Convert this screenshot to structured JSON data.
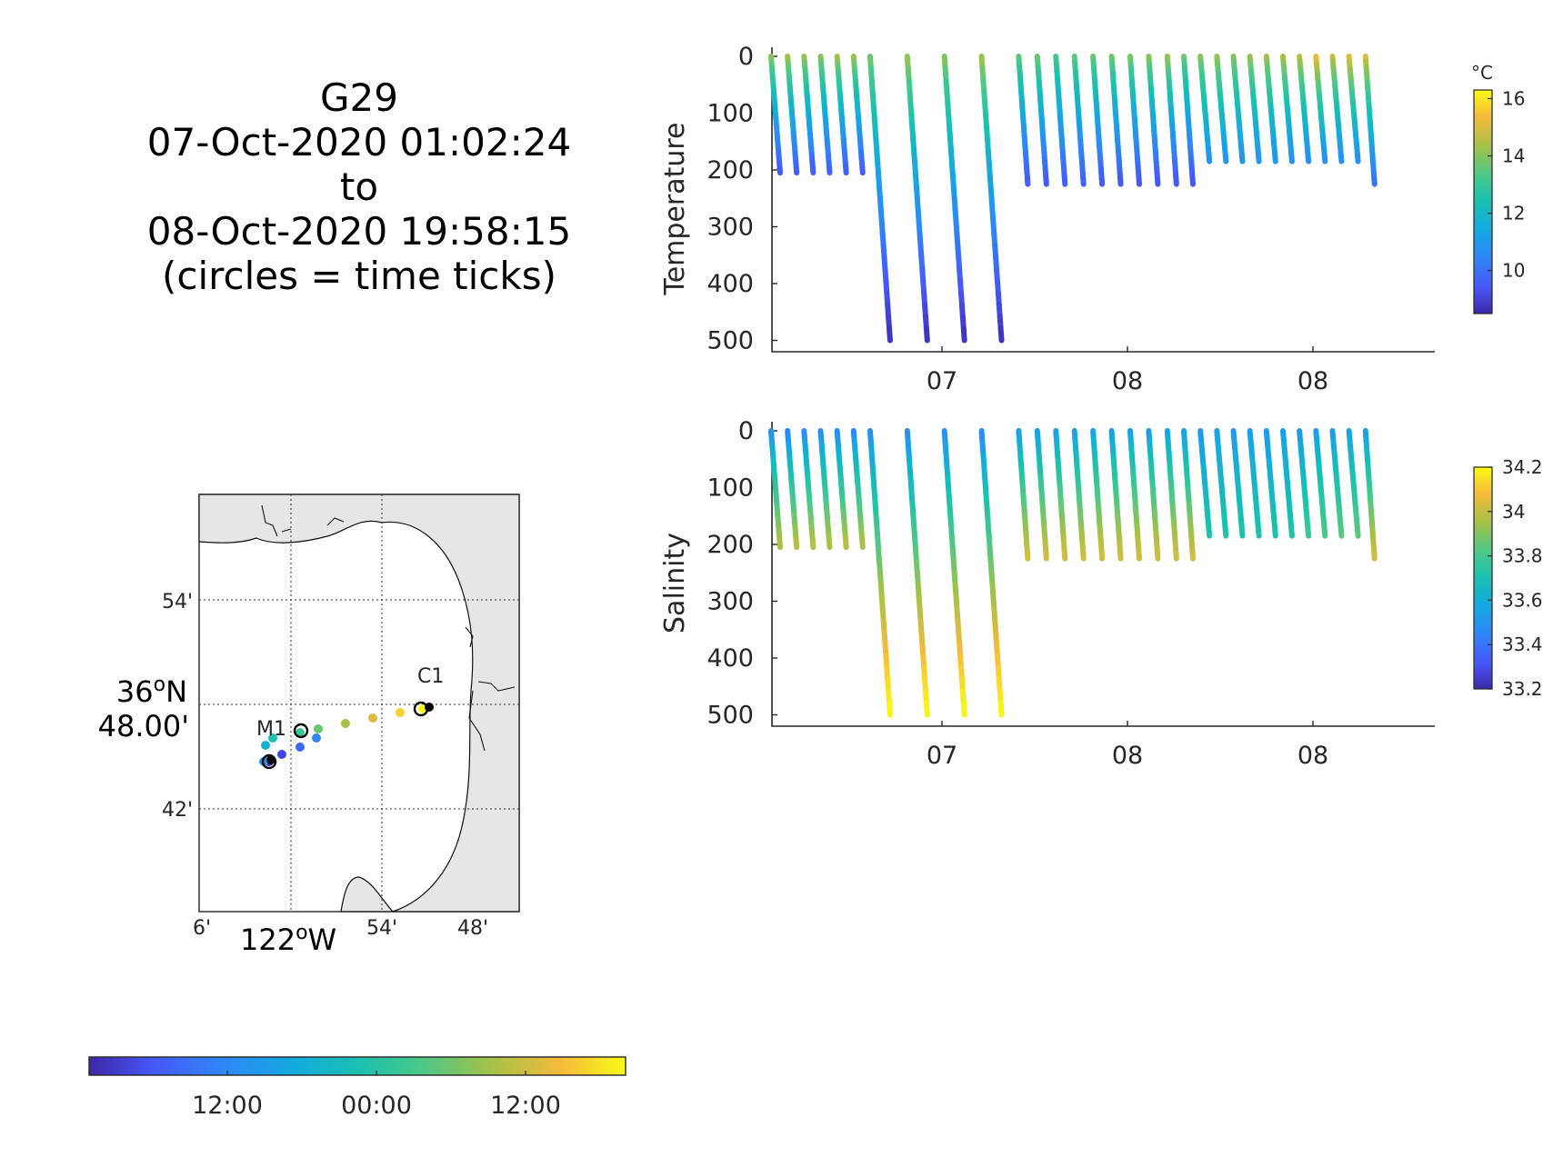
{
  "title": {
    "lines": [
      "G29",
      "07-Oct-2020 01:02:24",
      "to",
      "08-Oct-2020 19:58:15",
      "(circles = time ticks)"
    ]
  },
  "map": {
    "lat_labels": [
      "54'",
      "48.00'",
      "42'"
    ],
    "lat_deg_label": "36",
    "lat_deg_suffix": "N",
    "lon_labels": [
      "6'",
      "54'",
      "48'"
    ],
    "lon_deg_label": "122",
    "lon_deg_suffix": "W",
    "degree_symbol": "o",
    "stations": [
      {
        "name": "M1"
      },
      {
        "name": "C1"
      }
    ],
    "land_color": "#e6e6e6",
    "track_time_fraction": [
      0.0,
      0.33,
      0.66,
      1.0
    ]
  },
  "time_colorbar": {
    "tick_labels": [
      "12:00",
      "00:00",
      "12:00"
    ]
  },
  "chart_data": [
    {
      "type": "scatter",
      "ylabel": "Temperature",
      "yticks": [
        0,
        100,
        200,
        300,
        400,
        500
      ],
      "ylim": [
        0,
        520
      ],
      "xtick_labels": [
        "07",
        "08",
        "08"
      ],
      "colorbar": {
        "unit": "°C",
        "ticks": [
          10,
          12,
          14,
          16
        ],
        "range": [
          8.5,
          16.3
        ]
      },
      "profiles": [
        {
          "x": 0.0,
          "max_depth": 205,
          "surface_value": 14.3,
          "bottom_value": 9.5
        },
        {
          "x": 0.04,
          "max_depth": 205,
          "surface_value": 14.6,
          "bottom_value": 9.6
        },
        {
          "x": 0.08,
          "max_depth": 205,
          "surface_value": 14.5,
          "bottom_value": 9.6
        },
        {
          "x": 0.12,
          "max_depth": 205,
          "surface_value": 14.3,
          "bottom_value": 9.7
        },
        {
          "x": 0.16,
          "max_depth": 205,
          "surface_value": 14.6,
          "bottom_value": 9.6
        },
        {
          "x": 0.2,
          "max_depth": 205,
          "surface_value": 14.5,
          "bottom_value": 9.6
        },
        {
          "x": 0.24,
          "max_depth": 500,
          "surface_value": 14.0,
          "bottom_value": 8.7
        },
        {
          "x": 0.33,
          "max_depth": 500,
          "surface_value": 14.4,
          "bottom_value": 8.7
        },
        {
          "x": 0.42,
          "max_depth": 500,
          "surface_value": 14.2,
          "bottom_value": 8.7
        },
        {
          "x": 0.51,
          "max_depth": 500,
          "surface_value": 14.5,
          "bottom_value": 8.7
        },
        {
          "x": 0.6,
          "max_depth": 225,
          "surface_value": 13.8,
          "bottom_value": 9.5
        },
        {
          "x": 0.645,
          "max_depth": 225,
          "surface_value": 14.0,
          "bottom_value": 9.5
        },
        {
          "x": 0.69,
          "max_depth": 225,
          "surface_value": 13.5,
          "bottom_value": 9.6
        },
        {
          "x": 0.735,
          "max_depth": 225,
          "surface_value": 13.8,
          "bottom_value": 9.6
        },
        {
          "x": 0.78,
          "max_depth": 225,
          "surface_value": 13.9,
          "bottom_value": 9.5
        },
        {
          "x": 0.825,
          "max_depth": 225,
          "surface_value": 14.0,
          "bottom_value": 9.5
        },
        {
          "x": 0.87,
          "max_depth": 225,
          "surface_value": 14.1,
          "bottom_value": 9.4
        },
        {
          "x": 0.915,
          "max_depth": 225,
          "surface_value": 14.3,
          "bottom_value": 9.4
        },
        {
          "x": 0.96,
          "max_depth": 225,
          "surface_value": 14.5,
          "bottom_value": 9.4
        },
        {
          "x": 1.0,
          "max_depth": 225,
          "surface_value": 14.0,
          "bottom_value": 9.4
        },
        {
          "x": 1.04,
          "max_depth": 185,
          "surface_value": 14.2,
          "bottom_value": 10.8
        },
        {
          "x": 1.08,
          "max_depth": 185,
          "surface_value": 14.4,
          "bottom_value": 10.8
        },
        {
          "x": 1.12,
          "max_depth": 185,
          "surface_value": 14.2,
          "bottom_value": 10.8
        },
        {
          "x": 1.16,
          "max_depth": 185,
          "surface_value": 14.4,
          "bottom_value": 10.8
        },
        {
          "x": 1.2,
          "max_depth": 185,
          "surface_value": 14.5,
          "bottom_value": 10.8
        },
        {
          "x": 1.24,
          "max_depth": 185,
          "surface_value": 14.6,
          "bottom_value": 10.7
        },
        {
          "x": 1.28,
          "max_depth": 185,
          "surface_value": 14.8,
          "bottom_value": 10.7
        },
        {
          "x": 1.32,
          "max_depth": 185,
          "surface_value": 15.4,
          "bottom_value": 10.7
        },
        {
          "x": 1.36,
          "max_depth": 185,
          "surface_value": 14.9,
          "bottom_value": 10.7
        },
        {
          "x": 1.4,
          "max_depth": 185,
          "surface_value": 15.3,
          "bottom_value": 10.7
        },
        {
          "x": 1.44,
          "max_depth": 225,
          "surface_value": 15.2,
          "bottom_value": 10.0
        }
      ]
    },
    {
      "type": "scatter",
      "ylabel": "Salinity",
      "yticks": [
        0,
        100,
        200,
        300,
        400,
        500
      ],
      "ylim": [
        0,
        520
      ],
      "xtick_labels": [
        "07",
        "08",
        "08"
      ],
      "colorbar": {
        "unit": "",
        "ticks": [
          "33.2",
          "33.4",
          "33.6",
          "33.8",
          "34",
          "34.2"
        ],
        "range": [
          33.2,
          34.2
        ]
      },
      "profiles": [
        {
          "x": 0.0,
          "max_depth": 205,
          "surface_value": 33.45,
          "bottom_value": 33.97
        },
        {
          "x": 0.04,
          "max_depth": 205,
          "surface_value": 33.42,
          "bottom_value": 33.98
        },
        {
          "x": 0.08,
          "max_depth": 205,
          "surface_value": 33.43,
          "bottom_value": 33.98
        },
        {
          "x": 0.12,
          "max_depth": 205,
          "surface_value": 33.45,
          "bottom_value": 33.97
        },
        {
          "x": 0.16,
          "max_depth": 205,
          "surface_value": 33.43,
          "bottom_value": 33.98
        },
        {
          "x": 0.2,
          "max_depth": 205,
          "surface_value": 33.44,
          "bottom_value": 33.97
        },
        {
          "x": 0.24,
          "max_depth": 500,
          "surface_value": 33.45,
          "bottom_value": 34.2
        },
        {
          "x": 0.33,
          "max_depth": 500,
          "surface_value": 33.44,
          "bottom_value": 34.2
        },
        {
          "x": 0.42,
          "max_depth": 500,
          "surface_value": 33.45,
          "bottom_value": 34.2
        },
        {
          "x": 0.51,
          "max_depth": 500,
          "surface_value": 33.44,
          "bottom_value": 34.2
        },
        {
          "x": 0.6,
          "max_depth": 225,
          "surface_value": 33.5,
          "bottom_value": 34.02
        },
        {
          "x": 0.645,
          "max_depth": 225,
          "surface_value": 33.5,
          "bottom_value": 34.02
        },
        {
          "x": 0.69,
          "max_depth": 225,
          "surface_value": 33.52,
          "bottom_value": 34.02
        },
        {
          "x": 0.735,
          "max_depth": 225,
          "surface_value": 33.5,
          "bottom_value": 34.02
        },
        {
          "x": 0.78,
          "max_depth": 225,
          "surface_value": 33.52,
          "bottom_value": 34.02
        },
        {
          "x": 0.825,
          "max_depth": 225,
          "surface_value": 33.5,
          "bottom_value": 34.02
        },
        {
          "x": 0.87,
          "max_depth": 225,
          "surface_value": 33.52,
          "bottom_value": 34.02
        },
        {
          "x": 0.915,
          "max_depth": 225,
          "surface_value": 33.5,
          "bottom_value": 34.02
        },
        {
          "x": 0.96,
          "max_depth": 225,
          "surface_value": 33.52,
          "bottom_value": 34.02
        },
        {
          "x": 1.0,
          "max_depth": 225,
          "surface_value": 33.5,
          "bottom_value": 34.02
        },
        {
          "x": 1.04,
          "max_depth": 185,
          "surface_value": 33.5,
          "bottom_value": 33.72
        },
        {
          "x": 1.08,
          "max_depth": 185,
          "surface_value": 33.52,
          "bottom_value": 33.72
        },
        {
          "x": 1.12,
          "max_depth": 185,
          "surface_value": 33.5,
          "bottom_value": 33.72
        },
        {
          "x": 1.16,
          "max_depth": 185,
          "surface_value": 33.52,
          "bottom_value": 33.72
        },
        {
          "x": 1.2,
          "max_depth": 185,
          "surface_value": 33.5,
          "bottom_value": 33.72
        },
        {
          "x": 1.24,
          "max_depth": 185,
          "surface_value": 33.52,
          "bottom_value": 33.72
        },
        {
          "x": 1.28,
          "max_depth": 185,
          "surface_value": 33.5,
          "bottom_value": 33.78
        },
        {
          "x": 1.32,
          "max_depth": 185,
          "surface_value": 33.52,
          "bottom_value": 33.82
        },
        {
          "x": 1.36,
          "max_depth": 185,
          "surface_value": 33.5,
          "bottom_value": 33.85
        },
        {
          "x": 1.4,
          "max_depth": 185,
          "surface_value": 33.52,
          "bottom_value": 33.85
        },
        {
          "x": 1.44,
          "max_depth": 225,
          "surface_value": 33.5,
          "bottom_value": 34.02
        }
      ]
    }
  ]
}
